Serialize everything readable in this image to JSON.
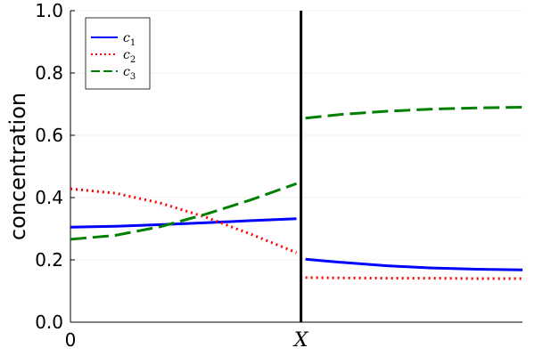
{
  "chart_data": {
    "type": "line",
    "title": "",
    "xlabel": "",
    "ylabel": "concentration",
    "ylim": [
      0,
      1
    ],
    "xlim": [
      0,
      1
    ],
    "x_ticks": [
      {
        "value": 0,
        "label": "0"
      },
      {
        "value": 0.51,
        "label": "X"
      }
    ],
    "y_ticks": [
      {
        "value": 0.0,
        "label": "0.0"
      },
      {
        "value": 0.2,
        "label": "0.2"
      },
      {
        "value": 0.4,
        "label": "0.4"
      },
      {
        "value": 0.6,
        "label": "0.6"
      },
      {
        "value": 0.8,
        "label": "0.8"
      },
      {
        "value": 1.0,
        "label": "1.0"
      }
    ],
    "grid": true,
    "legend_position": "top-left",
    "interface_x": 0.51,
    "series": [
      {
        "name": "c",
        "subscript": "1",
        "color": "#0000ff",
        "dash": "solid",
        "segments": [
          {
            "x": [
              0,
              0.1,
              0.2,
              0.3,
              0.4,
              0.5
            ],
            "y": [
              0.305,
              0.308,
              0.313,
              0.319,
              0.326,
              0.332
            ]
          },
          {
            "x": [
              0.52,
              0.6,
              0.7,
              0.8,
              0.9,
              1.0
            ],
            "y": [
              0.202,
              0.192,
              0.181,
              0.174,
              0.17,
              0.168
            ]
          }
        ]
      },
      {
        "name": "c",
        "subscript": "2",
        "color": "#ff0000",
        "dash": "dotted",
        "segments": [
          {
            "x": [
              0,
              0.1,
              0.2,
              0.3,
              0.4,
              0.5
            ],
            "y": [
              0.428,
              0.414,
              0.382,
              0.337,
              0.282,
              0.223
            ]
          },
          {
            "x": [
              0.52,
              0.6,
              0.7,
              0.8,
              0.9,
              1.0
            ],
            "y": [
              0.143,
              0.142,
              0.141,
              0.141,
              0.14,
              0.14
            ]
          }
        ]
      },
      {
        "name": "c",
        "subscript": "3",
        "color": "#008000",
        "dash": "dashed",
        "segments": [
          {
            "x": [
              0,
              0.1,
              0.2,
              0.3,
              0.4,
              0.5
            ],
            "y": [
              0.266,
              0.279,
              0.307,
              0.347,
              0.393,
              0.445
            ]
          },
          {
            "x": [
              0.52,
              0.6,
              0.7,
              0.8,
              0.9,
              1.0
            ],
            "y": [
              0.655,
              0.667,
              0.677,
              0.684,
              0.688,
              0.69
            ]
          }
        ]
      }
    ]
  }
}
